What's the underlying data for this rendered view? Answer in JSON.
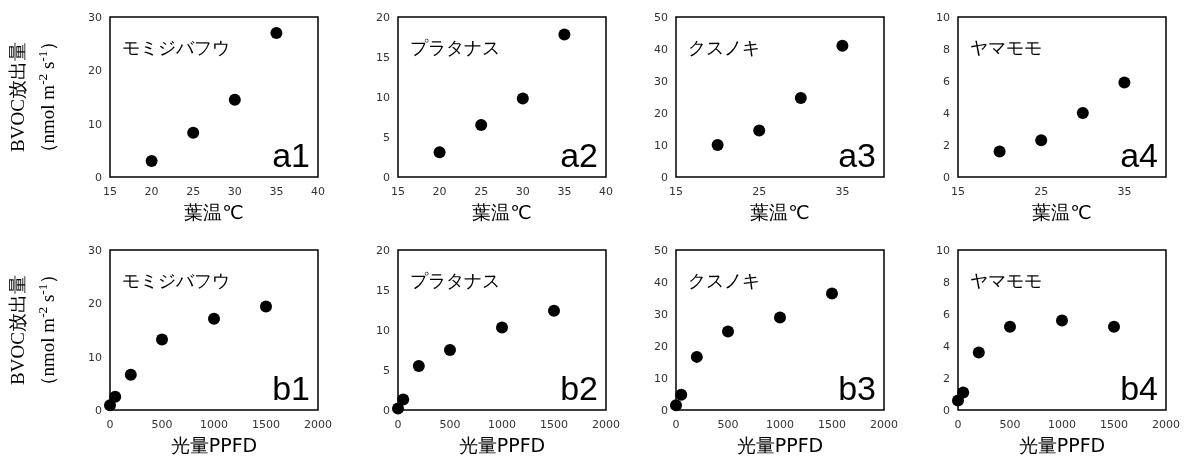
{
  "chart_data": [
    {
      "type": "scatter",
      "annotations": [
        "モミジバフウ",
        "a1"
      ],
      "ylabel": "BVOC放出量（nmol m$^{-2}$ s$^{-1}$）",
      "xlabel": "葉温℃",
      "x": [
        20,
        25,
        30,
        35
      ],
      "series": [
        {
          "color": "#000000",
          "values": [
            3,
            8.3,
            14.5,
            27
          ]
        }
      ],
      "xlim": [
        15,
        40
      ],
      "xticks": [
        15,
        20,
        25,
        30,
        35,
        40
      ],
      "ylim": [
        0,
        30
      ],
      "yticks": [
        0,
        10,
        20,
        30
      ],
      "marker": "circle",
      "grid": false
    },
    {
      "type": "scatter",
      "annotations": [
        "プラタナス",
        "a2"
      ],
      "xlabel": "葉温℃",
      "x": [
        20,
        25,
        30,
        35
      ],
      "series": [
        {
          "color": "#000000",
          "values": [
            3.1,
            6.5,
            9.8,
            17.8
          ]
        }
      ],
      "xlim": [
        15,
        40
      ],
      "xticks": [
        15,
        20,
        25,
        30,
        35,
        40
      ],
      "ylim": [
        0,
        20
      ],
      "yticks": [
        0,
        5,
        10,
        15,
        20
      ],
      "marker": "circle",
      "grid": false
    },
    {
      "type": "scatter",
      "annotations": [
        "クスノキ",
        "a3"
      ],
      "xlabel": "葉温℃",
      "x": [
        20,
        25,
        30,
        35
      ],
      "series": [
        {
          "color": "#000000",
          "values": [
            10,
            14.5,
            24.7,
            41
          ]
        }
      ],
      "xlim": [
        15,
        40
      ],
      "xticks": [
        15,
        25,
        35
      ],
      "ylim": [
        0,
        50
      ],
      "yticks": [
        0,
        10,
        20,
        30,
        40,
        50
      ],
      "marker": "circle",
      "grid": false
    },
    {
      "type": "scatter",
      "annotations": [
        "ヤマモモ",
        "a4"
      ],
      "xlabel": "葉温℃",
      "x": [
        20,
        25,
        30,
        35
      ],
      "series": [
        {
          "color": "#000000",
          "values": [
            1.6,
            2.3,
            4,
            5.9
          ]
        }
      ],
      "xlim": [
        15,
        40
      ],
      "xticks": [
        15,
        25,
        35
      ],
      "ylim": [
        0,
        10
      ],
      "yticks": [
        0,
        2,
        4,
        6,
        8,
        10
      ],
      "marker": "circle",
      "grid": false
    },
    {
      "type": "scatter",
      "annotations": [
        "モミジバフウ",
        "b1"
      ],
      "ylabel": "BVOC放出量（nmol m$^{-2}$ s$^{-1}$）",
      "xlabel": "光量PPFD",
      "x": [
        0,
        50,
        200,
        500,
        1000,
        1500
      ],
      "series": [
        {
          "color": "#000000",
          "values": [
            0.9,
            2.5,
            6.6,
            13.2,
            17.1,
            19.4
          ]
        }
      ],
      "xlim": [
        0,
        2000
      ],
      "xticks": [
        0,
        500,
        1000,
        1500,
        2000
      ],
      "ylim": [
        0,
        30
      ],
      "yticks": [
        0,
        10,
        20,
        30
      ],
      "marker": "circle",
      "grid": false
    },
    {
      "type": "scatter",
      "annotations": [
        "プラタナス",
        "b2"
      ],
      "xlabel": "光量PPFD",
      "x": [
        0,
        50,
        200,
        500,
        1000,
        1500
      ],
      "series": [
        {
          "color": "#000000",
          "values": [
            0.2,
            1.3,
            5.5,
            7.5,
            10.3,
            12.4
          ]
        }
      ],
      "xlim": [
        0,
        2000
      ],
      "xticks": [
        0,
        500,
        1000,
        1500,
        2000
      ],
      "ylim": [
        0,
        20
      ],
      "yticks": [
        0,
        5,
        10,
        15,
        20
      ],
      "marker": "circle",
      "grid": false
    },
    {
      "type": "scatter",
      "annotations": [
        "クスノキ",
        "b3"
      ],
      "xlabel": "光量PPFD",
      "x": [
        0,
        50,
        200,
        500,
        1000,
        1500
      ],
      "series": [
        {
          "color": "#000000",
          "values": [
            1.5,
            4.8,
            16.6,
            24.5,
            28.9,
            36.4
          ]
        }
      ],
      "xlim": [
        0,
        2000
      ],
      "xticks": [
        0,
        500,
        1000,
        1500,
        2000
      ],
      "ylim": [
        0,
        50
      ],
      "yticks": [
        0,
        10,
        20,
        30,
        40,
        50
      ],
      "marker": "circle",
      "grid": false
    },
    {
      "type": "scatter",
      "annotations": [
        "ヤマモモ",
        "b4"
      ],
      "xlabel": "光量PPFD",
      "x": [
        0,
        50,
        200,
        500,
        1000,
        1500
      ],
      "series": [
        {
          "color": "#000000",
          "values": [
            0.6,
            1.1,
            3.6,
            5.2,
            5.6,
            5.2
          ]
        }
      ],
      "xlim": [
        0,
        2000
      ],
      "xticks": [
        0,
        500,
        1000,
        1500,
        2000
      ],
      "ylim": [
        0,
        10
      ],
      "yticks": [
        0,
        2,
        4,
        6,
        8,
        10
      ],
      "marker": "circle",
      "grid": false
    }
  ]
}
